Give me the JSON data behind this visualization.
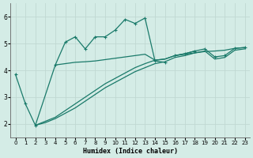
{
  "xlabel": "Humidex (Indice chaleur)",
  "background_color": "#d4ece6",
  "grid_color": "#c0d8d2",
  "line_color": "#1a7a6a",
  "xlim": [
    -0.5,
    23.5
  ],
  "ylim": [
    1.5,
    6.5
  ],
  "xticks": [
    0,
    1,
    2,
    3,
    4,
    5,
    6,
    7,
    8,
    9,
    10,
    11,
    12,
    13,
    14,
    15,
    16,
    17,
    18,
    19,
    20,
    21,
    22,
    23
  ],
  "yticks": [
    2,
    3,
    4,
    5,
    6
  ],
  "line_a_x": [
    0,
    1,
    2,
    4,
    5,
    6,
    7,
    8,
    9,
    10,
    11,
    12,
    13,
    14,
    15
  ],
  "line_a_y": [
    3.85,
    2.75,
    1.95,
    4.2,
    5.05,
    5.25,
    4.8,
    5.25,
    5.25,
    5.5,
    5.9,
    5.75,
    5.95,
    4.35,
    4.3
  ],
  "line_b_x": [
    4,
    5,
    6,
    7,
    8,
    9,
    10,
    11,
    12,
    13,
    14,
    15,
    16,
    17,
    18,
    19,
    20,
    21,
    22,
    23
  ],
  "line_b_y": [
    4.2,
    4.25,
    4.3,
    4.32,
    4.35,
    4.4,
    4.45,
    4.5,
    4.55,
    4.6,
    4.38,
    4.42,
    4.55,
    4.6,
    4.65,
    4.7,
    4.72,
    4.75,
    4.82,
    4.85
  ],
  "line_c_x": [
    2,
    3,
    4,
    5,
    6,
    7,
    8,
    9,
    10,
    11,
    12,
    13,
    14,
    15,
    16,
    17,
    18,
    19,
    20,
    21,
    22,
    23
  ],
  "line_c_y": [
    1.95,
    2.1,
    2.25,
    2.5,
    2.75,
    3.0,
    3.25,
    3.5,
    3.7,
    3.9,
    4.1,
    4.25,
    4.38,
    4.42,
    4.55,
    4.62,
    4.72,
    4.8,
    4.5,
    4.55,
    4.82,
    4.85
  ],
  "line_d_x": [
    2,
    3,
    4,
    5,
    6,
    7,
    8,
    9,
    10,
    11,
    12,
    13,
    14,
    15,
    16,
    17,
    18,
    19,
    20,
    21,
    22,
    23
  ],
  "line_d_y": [
    1.95,
    2.05,
    2.2,
    2.4,
    2.6,
    2.85,
    3.1,
    3.35,
    3.55,
    3.75,
    3.95,
    4.1,
    4.25,
    4.32,
    4.48,
    4.55,
    4.65,
    4.72,
    4.42,
    4.48,
    4.75,
    4.8
  ]
}
